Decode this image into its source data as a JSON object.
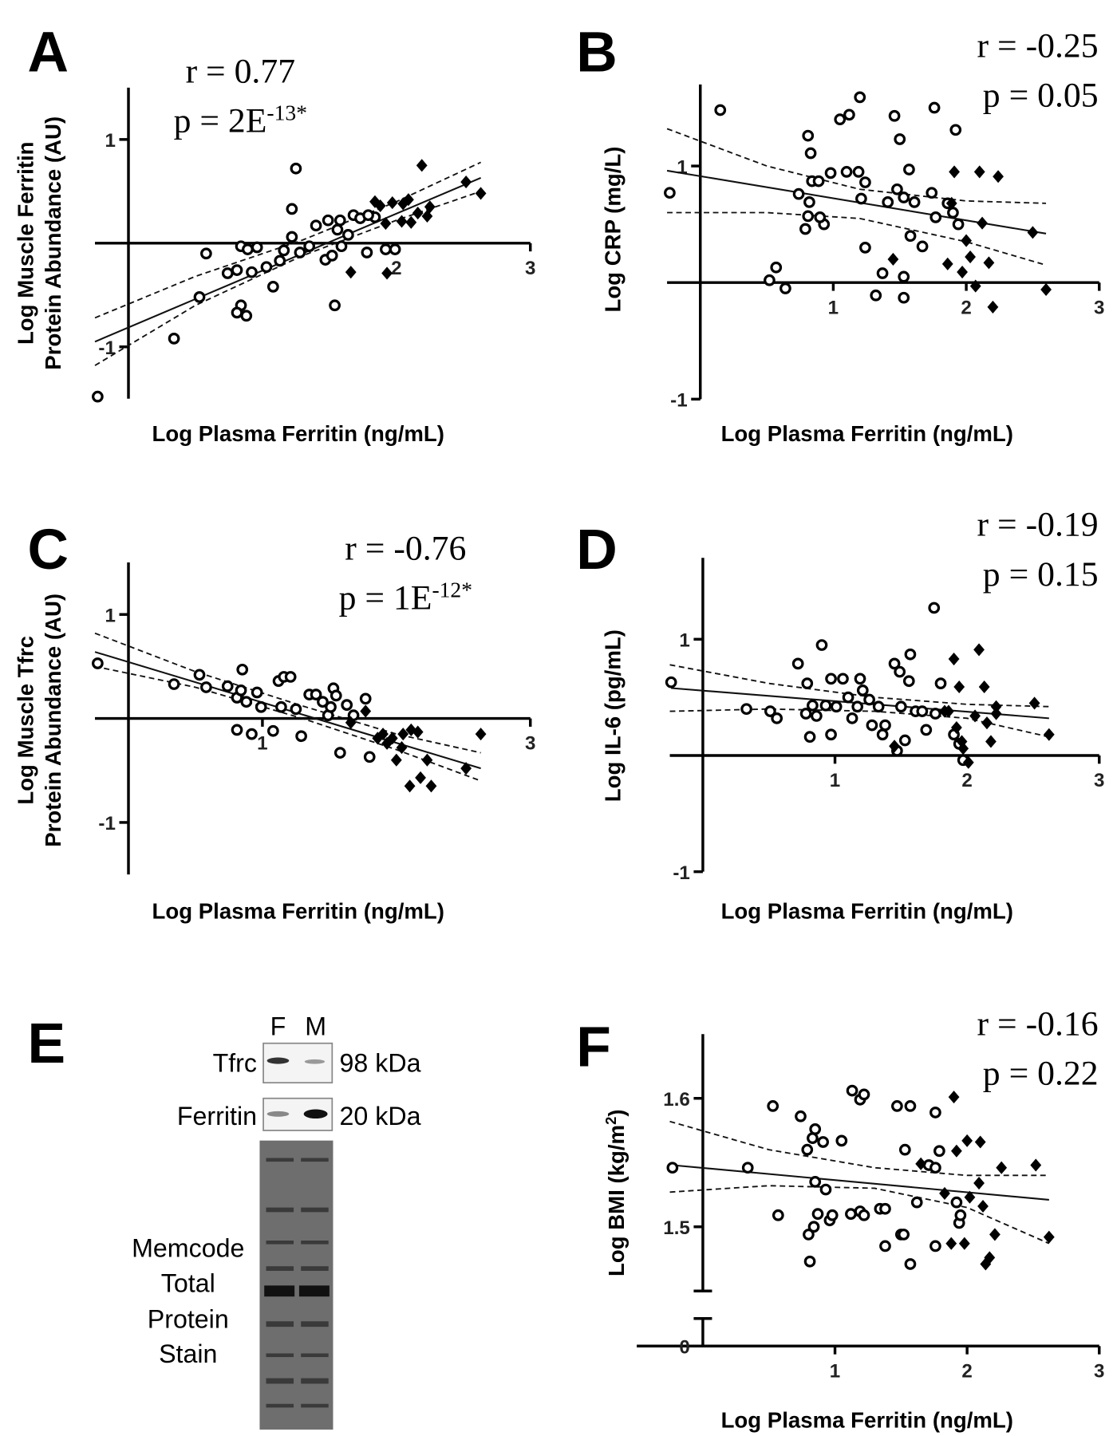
{
  "chart_data": [
    {
      "type": "scatter",
      "panel_label": "A",
      "annotation": {
        "r": "r = 0.77",
        "p": "p = 2E",
        "p_sup": "-13*"
      },
      "xlabel": "Log Plasma Ferritin (ng/mL)",
      "ylabel": [
        "Log Muscle  Ferritin",
        "Protein Abundance (AU)"
      ],
      "xlim": [
        -0.25,
        3
      ],
      "ylim": [
        -1.5,
        1.5
      ],
      "xticks": [
        2,
        3
      ],
      "yticks": [
        -1,
        1
      ],
      "series": [
        {
          "marker": "circle",
          "color": "#000000",
          "x": [
            -0.23,
            0.34,
            0.53,
            0.58,
            0.74,
            0.81,
            0.84,
            0.89,
            0.84,
            0.81,
            0.88,
            0.92,
            0.96,
            1.03,
            1.08,
            1.13,
            1.16,
            1.22,
            1.22,
            1.25,
            1.28,
            1.35,
            1.4,
            1.49,
            1.47,
            1.52,
            1.54,
            1.59,
            1.58,
            1.64,
            1.68,
            1.73,
            1.78,
            1.84,
            1.92,
            1.99,
            1.56,
            1.79
          ],
          "values": [
            -1.48,
            -0.92,
            -0.52,
            -0.1,
            -0.29,
            -0.26,
            -0.03,
            -0.06,
            -0.6,
            -0.67,
            -0.7,
            -0.28,
            -0.04,
            -0.23,
            -0.42,
            -0.17,
            -0.07,
            0.06,
            0.33,
            0.72,
            -0.09,
            -0.03,
            0.17,
            0.22,
            -0.16,
            -0.12,
            -0.6,
            -0.03,
            0.22,
            0.08,
            0.27,
            0.24,
            -0.09,
            0.25,
            -0.06,
            -0.06,
            0.13,
            0.27
          ]
        },
        {
          "marker": "diamond",
          "color": "#000000",
          "x": [
            1.66,
            1.84,
            1.88,
            1.92,
            1.93,
            1.97,
            2.04,
            2.09,
            2.11,
            2.16,
            2.19,
            2.23,
            2.25,
            2.52,
            2.63,
            2.05
          ],
          "values": [
            -0.28,
            0.4,
            0.36,
            0.19,
            -0.29,
            0.39,
            0.21,
            0.42,
            0.2,
            0.29,
            0.75,
            0.26,
            0.35,
            0.59,
            0.48,
            0.38
          ]
        }
      ],
      "fit": {
        "x": [
          -0.25,
          2.63
        ],
        "values": [
          -0.95,
          0.63
        ]
      },
      "ci_upper": {
        "x": [
          -0.25,
          0.5,
          1.3,
          2,
          2.63
        ],
        "values": [
          -0.72,
          -0.32,
          0.03,
          0.4,
          0.78
        ]
      },
      "ci_lower": {
        "x": [
          -0.25,
          0.5,
          1.3,
          2,
          2.63
        ],
        "values": [
          -1.18,
          -0.6,
          -0.12,
          0.22,
          0.5
        ]
      }
    },
    {
      "type": "scatter",
      "panel_label": "B",
      "annotation": {
        "r": "r = -0.25",
        "p": "p = 0.05"
      },
      "xlabel": "Log Plasma Ferritin (ng/mL)",
      "ylabel": [
        "Log CRP (mg/L)"
      ],
      "xlim": [
        -0.25,
        3
      ],
      "ylim": [
        -1,
        1.7
      ],
      "xticks": [
        1,
        2,
        3
      ],
      "yticks": [
        -1,
        1
      ],
      "series": [
        {
          "marker": "circle",
          "color": "#000000",
          "x": [
            -0.23,
            0.15,
            0.52,
            0.57,
            0.64,
            0.81,
            0.83,
            0.74,
            0.82,
            0.84,
            0.89,
            0.93,
            0.98,
            0.79,
            0.81,
            0.9,
            1.05,
            1.12,
            1.2,
            1.1,
            1.19,
            1.21,
            1.24,
            1.24,
            1.32,
            1.37,
            1.41,
            1.46,
            1.5,
            1.48,
            1.53,
            1.53,
            1.53,
            1.57,
            1.58,
            1.61,
            1.67,
            1.74,
            1.76,
            1.77,
            1.86,
            1.92,
            1.94,
            1.9
          ],
          "values": [
            0.77,
            1.48,
            0.02,
            0.13,
            -0.05,
            1.26,
            1.11,
            0.76,
            0.69,
            0.87,
            0.87,
            0.5,
            0.94,
            0.46,
            0.57,
            0.56,
            1.4,
            1.44,
            1.59,
            0.95,
            0.95,
            0.72,
            0.3,
            0.86,
            -0.11,
            0.08,
            0.69,
            1.43,
            1.23,
            0.8,
            0.73,
            0.05,
            -0.13,
            0.97,
            0.4,
            0.69,
            0.31,
            0.77,
            1.5,
            0.56,
            0.68,
            1.31,
            0.5,
            0.6
          ]
        },
        {
          "marker": "diamond",
          "color": "#000000",
          "x": [
            1.45,
            1.86,
            1.89,
            1.91,
            1.97,
            2.0,
            2.03,
            2.07,
            2.1,
            2.12,
            2.17,
            2.2,
            2.24,
            2.5,
            2.6
          ],
          "values": [
            0.2,
            0.16,
            0.68,
            0.95,
            0.09,
            0.36,
            0.22,
            -0.03,
            0.95,
            0.51,
            0.17,
            -0.21,
            0.91,
            0.43,
            -0.06
          ]
        }
      ],
      "fit": {
        "x": [
          -0.25,
          2.6
        ],
        "values": [
          0.96,
          0.42
        ]
      },
      "ci_upper": {
        "x": [
          -0.25,
          0.5,
          1.2,
          2,
          2.6
        ],
        "values": [
          1.32,
          1.0,
          0.8,
          0.7,
          0.68
        ]
      },
      "ci_lower": {
        "x": [
          -0.25,
          0.5,
          1.2,
          2,
          2.6
        ],
        "values": [
          0.6,
          0.6,
          0.55,
          0.35,
          0.15
        ]
      }
    },
    {
      "type": "scatter",
      "panel_label": "C",
      "annotation": {
        "r": "r = -0.76",
        "p": "p = 1E",
        "p_sup": "-12*"
      },
      "xlabel": "Log Plasma Ferritin (ng/mL)",
      "ylabel": [
        "Log Muscle Tfrc",
        "Protein Abundance (AU)"
      ],
      "xlim": [
        -0.25,
        3
      ],
      "ylim": [
        -1.5,
        1.5
      ],
      "xticks": [
        1,
        3
      ],
      "yticks": [
        -1,
        1
      ],
      "series": [
        {
          "marker": "circle",
          "color": "#000000",
          "x": [
            -0.23,
            0.34,
            0.53,
            0.58,
            0.74,
            0.81,
            0.85,
            0.84,
            0.88,
            0.81,
            0.92,
            0.96,
            0.99,
            1.08,
            1.12,
            1.16,
            1.21,
            1.14,
            1.25,
            1.29,
            1.35,
            1.4,
            1.45,
            1.49,
            1.53,
            1.55,
            1.58,
            1.63,
            1.68,
            1.77,
            1.8,
            1.51
          ],
          "values": [
            0.53,
            0.33,
            0.42,
            0.3,
            0.31,
            0.2,
            0.47,
            0.27,
            0.16,
            -0.11,
            -0.15,
            0.25,
            0.11,
            -0.12,
            0.36,
            0.4,
            0.4,
            0.11,
            0.09,
            -0.17,
            0.23,
            0.23,
            0.16,
            0.03,
            0.29,
            0.22,
            -0.33,
            0.13,
            0.03,
            0.19,
            -0.37,
            0.11
          ]
        },
        {
          "marker": "diamond",
          "color": "#000000",
          "x": [
            1.66,
            1.77,
            1.86,
            1.9,
            1.93,
            1.97,
            2.0,
            2.04,
            2.11,
            2.16,
            2.1,
            2.18,
            2.26,
            2.23,
            2.52,
            2.63,
            2.05
          ],
          "values": [
            -0.04,
            0.07,
            -0.19,
            -0.15,
            -0.24,
            -0.19,
            -0.4,
            -0.28,
            -0.11,
            -0.13,
            -0.65,
            -0.57,
            -0.65,
            -0.4,
            -0.48,
            -0.15,
            -0.15
          ]
        }
      ],
      "fit": {
        "x": [
          -0.25,
          2.63
        ],
        "values": [
          0.64,
          -0.48
        ]
      },
      "ci_upper": {
        "x": [
          -0.25,
          0.5,
          1.3,
          2,
          2.63
        ],
        "values": [
          0.82,
          0.45,
          0.12,
          -0.15,
          -0.33
        ]
      },
      "ci_lower": {
        "x": [
          -0.25,
          0.5,
          1.3,
          2,
          2.63
        ],
        "values": [
          0.5,
          0.3,
          0.0,
          -0.3,
          -0.6
        ]
      }
    },
    {
      "type": "scatter",
      "panel_label": "D",
      "annotation": {
        "r": "r = -0.19",
        "p": "p = 0.15"
      },
      "xlabel": "Log Plasma Ferritin (ng/mL)",
      "ylabel": [
        "Log IL-6 (pg/mL)"
      ],
      "xlim": [
        -0.25,
        3
      ],
      "ylim": [
        -1,
        1.7
      ],
      "xticks": [
        1,
        2,
        3
      ],
      "yticks": [
        -1,
        1
      ],
      "series": [
        {
          "marker": "circle",
          "color": "#000000",
          "x": [
            -0.24,
            0.33,
            0.51,
            0.56,
            0.72,
            0.79,
            0.78,
            0.81,
            0.83,
            0.86,
            0.9,
            0.93,
            0.97,
            0.97,
            1.01,
            1.06,
            1.1,
            1.13,
            1.17,
            1.19,
            1.21,
            1.26,
            1.28,
            1.33,
            1.36,
            1.38,
            1.45,
            1.47,
            1.49,
            1.5,
            1.53,
            1.56,
            1.57,
            1.61,
            1.66,
            1.69,
            1.75,
            1.76,
            1.8,
            1.9,
            1.94,
            1.97
          ],
          "values": [
            0.63,
            0.4,
            0.38,
            0.32,
            0.79,
            0.62,
            0.36,
            0.16,
            0.43,
            0.34,
            0.95,
            0.43,
            0.66,
            0.18,
            0.42,
            0.66,
            0.5,
            0.32,
            0.42,
            0.66,
            0.56,
            0.48,
            0.26,
            0.42,
            0.18,
            0.26,
            0.79,
            0.04,
            0.72,
            0.42,
            0.13,
            0.64,
            0.87,
            0.38,
            0.38,
            0.22,
            1.27,
            0.36,
            0.62,
            0.18,
            0.1,
            -0.04
          ]
        },
        {
          "marker": "diamond",
          "color": "#000000",
          "x": [
            1.45,
            1.83,
            1.86,
            1.9,
            1.94,
            1.92,
            1.96,
            1.97,
            2.01,
            2.06,
            2.09,
            2.13,
            2.15,
            2.18,
            2.22,
            2.22,
            2.51,
            2.62
          ],
          "values": [
            0.08,
            0.38,
            0.38,
            0.83,
            0.59,
            0.24,
            0.12,
            0.06,
            -0.06,
            0.34,
            0.91,
            0.59,
            0.28,
            0.12,
            0.36,
            0.42,
            0.45,
            0.18
          ]
        }
      ],
      "fit": {
        "x": [
          -0.24,
          2.62
        ],
        "values": [
          0.58,
          0.32
        ]
      },
      "ci_upper": {
        "x": [
          -0.25,
          0.5,
          1.3,
          2,
          2.62
        ],
        "values": [
          0.78,
          0.62,
          0.5,
          0.44,
          0.42
        ]
      },
      "ci_lower": {
        "x": [
          -0.25,
          0.5,
          1.3,
          2,
          2.62
        ],
        "values": [
          0.38,
          0.4,
          0.38,
          0.32,
          0.16
        ]
      }
    },
    {
      "type": "scatter",
      "panel_label": "F",
      "annotation": {
        "r": "r = -0.16",
        "p": "p = 0.22"
      },
      "xlabel": "Log Plasma Ferritin (ng/mL)",
      "ylabel": [
        "Log BMI (kg/m"
      ],
      "ylabel_sup": "2",
      "ylabel_tail": ")",
      "xlim": [
        -0.5,
        3
      ],
      "ylim": [
        1.45,
        1.65
      ],
      "axis_break": true,
      "xticks": [
        1,
        2,
        3
      ],
      "yticks": [
        0,
        1.5,
        1.6
      ],
      "series": [
        {
          "marker": "circle",
          "color": "#000000",
          "x": [
            -0.23,
            0.34,
            0.53,
            0.57,
            0.74,
            0.79,
            0.83,
            0.85,
            0.91,
            0.8,
            0.81,
            0.84,
            0.85,
            0.87,
            0.93,
            0.96,
            0.98,
            1.05,
            1.12,
            1.13,
            1.19,
            1.22,
            1.19,
            1.22,
            1.34,
            1.38,
            1.38,
            1.47,
            1.5,
            1.53,
            1.57,
            1.52,
            1.57,
            1.62,
            1.71,
            1.76,
            1.76,
            1.76,
            1.79,
            1.92,
            1.94,
            1.95
          ],
          "values": [
            1.546,
            1.546,
            1.594,
            1.509,
            1.586,
            1.56,
            1.569,
            1.576,
            1.566,
            1.494,
            1.473,
            1.5,
            1.535,
            1.51,
            1.529,
            1.505,
            1.509,
            1.567,
            1.51,
            1.606,
            1.599,
            1.603,
            1.512,
            1.509,
            1.514,
            1.485,
            1.514,
            1.594,
            1.494,
            1.56,
            1.594,
            1.494,
            1.471,
            1.519,
            1.548,
            1.546,
            1.589,
            1.485,
            1.559,
            1.519,
            1.503,
            1.509
          ]
        },
        {
          "marker": "diamond",
          "color": "#000000",
          "x": [
            1.65,
            1.83,
            1.9,
            1.92,
            1.88,
            1.98,
            2.0,
            2.02,
            2.09,
            2.1,
            2.12,
            2.14,
            2.17,
            2.21,
            2.26,
            2.52,
            2.62
          ],
          "values": [
            1.549,
            1.526,
            1.601,
            1.559,
            1.487,
            1.487,
            1.567,
            1.523,
            1.534,
            1.566,
            1.516,
            1.471,
            1.476,
            1.494,
            1.546,
            1.548,
            1.492
          ]
        }
      ],
      "fit": {
        "x": [
          -0.23,
          2.62
        ],
        "values": [
          1.548,
          1.521
        ]
      },
      "ci_upper": {
        "x": [
          -0.25,
          0.5,
          1.3,
          2,
          2.62
        ],
        "values": [
          1.582,
          1.56,
          1.546,
          1.54,
          1.54
        ]
      },
      "ci_lower": {
        "x": [
          -0.25,
          0.5,
          1.3,
          2,
          2.62
        ],
        "values": [
          1.527,
          1.532,
          1.53,
          1.515,
          1.487
        ]
      }
    }
  ],
  "blot": {
    "panel_label": "E",
    "lanes": [
      "F",
      "M"
    ],
    "rows": [
      {
        "label": "Tfrc",
        "size": "98 kDa"
      },
      {
        "label": "Ferritin",
        "size": "20 kDa"
      }
    ],
    "stain_label": [
      "Memcode",
      "Total",
      "Protein",
      "Stain"
    ]
  }
}
